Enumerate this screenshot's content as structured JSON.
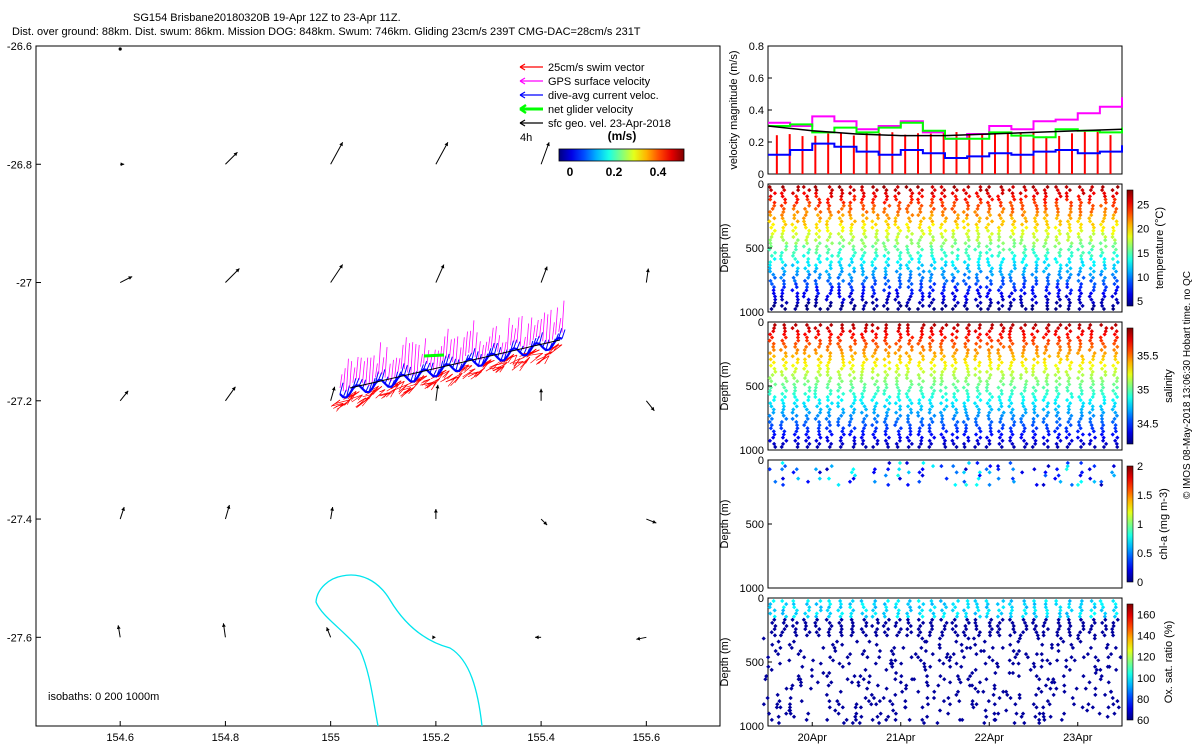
{
  "header": {
    "title": "SG154 Brisbane20180320B 19-Apr 12Z to 23-Apr 11Z.",
    "subtitle": "Dist. over ground: 88km. Dist. swum: 86km. Mission DOG: 848km. Swum: 746km. Gliding 23cm/s 239T CMG-DAC=28cm/s 231T"
  },
  "credit": "© IMOS 08-May-2018 13:06:30 Hobart time. no QC",
  "map": {
    "legend": [
      {
        "label": "25cm/s swim vector",
        "color": "#ff0000"
      },
      {
        "label": "GPS surface velocity",
        "color": "#ff00ff"
      },
      {
        "label": "dive-avg current veloc.",
        "color": "#0000ff"
      },
      {
        "label": "net glider velocity",
        "color": "#00ff00"
      },
      {
        "label": "sfc geo. vel. 23-Apr-2018",
        "color": "#000000"
      }
    ],
    "tag_4h": "4h",
    "colorbar_title": "(m/s)",
    "colorbar_ticks": [
      "0",
      "0.2",
      "0.4"
    ],
    "isobath_note": "isobaths: 0   200   1000m",
    "x_ticks": [
      "154.6",
      "154.8",
      "155",
      "155.2",
      "155.4",
      "155.6"
    ],
    "y_ticks": [
      "-26.6",
      "-26.8",
      "-27",
      "-27.2",
      "-27.4",
      "-27.6"
    ],
    "colors": {
      "isobath": "#00e5ee",
      "swim": "#ff0000",
      "gps": "#ff00ff",
      "dac": "#0000ff",
      "net": "#00ff00"
    }
  },
  "chart_data": [
    {
      "type": "line",
      "title": "",
      "xlabel": "",
      "ylabel": "velocity magnitude (m/s)",
      "ylim": [
        0,
        0.8
      ],
      "yticks": [
        "0",
        "0.2",
        "0.4",
        "0.6",
        "0.8"
      ],
      "series": [
        {
          "color": "#ff00ff",
          "x": [
            0,
            0.25,
            0.5,
            0.75,
            1,
            1.25,
            1.5,
            1.75,
            2,
            2.25,
            2.5,
            2.75,
            3,
            3.25,
            3.5,
            3.75,
            4
          ],
          "values": [
            0.32,
            0.3,
            0.36,
            0.33,
            0.28,
            0.3,
            0.33,
            0.26,
            0.22,
            0.25,
            0.3,
            0.28,
            0.33,
            0.34,
            0.38,
            0.42,
            0.48
          ]
        },
        {
          "color": "#00ff00",
          "x": [
            0,
            0.25,
            0.5,
            0.75,
            1,
            1.25,
            1.5,
            1.75,
            2,
            2.25,
            2.5,
            2.75,
            3,
            3.25,
            3.5,
            3.75,
            4
          ],
          "values": [
            0.3,
            0.31,
            0.26,
            0.29,
            0.26,
            0.29,
            0.32,
            0.27,
            0.22,
            0.22,
            0.26,
            0.24,
            0.23,
            0.28,
            0.27,
            0.26,
            0.29
          ]
        },
        {
          "color": "#0000ff",
          "x": [
            0,
            0.25,
            0.5,
            0.75,
            1,
            1.25,
            1.5,
            1.75,
            2,
            2.25,
            2.5,
            2.75,
            3,
            3.25,
            3.5,
            3.75,
            4
          ],
          "values": [
            0.12,
            0.15,
            0.19,
            0.17,
            0.14,
            0.12,
            0.15,
            0.13,
            0.1,
            0.11,
            0.13,
            0.12,
            0.14,
            0.15,
            0.13,
            0.14,
            0.18
          ]
        },
        {
          "color": "#000000",
          "x": [
            0,
            0.5,
            1,
            1.5,
            2,
            2.5,
            3,
            3.5,
            4
          ],
          "values": [
            0.3,
            0.27,
            0.25,
            0.24,
            0.24,
            0.25,
            0.26,
            0.27,
            0.28
          ]
        }
      ]
    },
    {
      "type": "scatter",
      "xlabel": "",
      "ylabel": "Depth (m)",
      "ylim": [
        0,
        1000
      ],
      "yticks": [
        "0",
        "500",
        "1000"
      ],
      "colorbar": {
        "label": "temperature (°C)",
        "ticks": [
          "5",
          "10",
          "15",
          "20",
          "25"
        ],
        "range": [
          4,
          28
        ]
      }
    },
    {
      "type": "scatter",
      "xlabel": "",
      "ylabel": "Depth (m)",
      "ylim": [
        0,
        1000
      ],
      "yticks": [
        "0",
        "500",
        "1000"
      ],
      "colorbar": {
        "label": "salinity",
        "ticks": [
          "34.5",
          "35",
          "35.5"
        ],
        "range": [
          34.2,
          35.9
        ]
      }
    },
    {
      "type": "scatter",
      "xlabel": "",
      "ylabel": "Depth (m)",
      "ylim": [
        0,
        1000
      ],
      "yticks": [
        "0",
        "500",
        "1000"
      ],
      "colorbar": {
        "label": "chl-a (mg m-3)",
        "ticks": [
          "0",
          "0.5",
          "1",
          "1.5",
          "2"
        ],
        "range": [
          0,
          2
        ]
      }
    },
    {
      "type": "scatter",
      "xlabel": "",
      "ylabel": "Depth (m)",
      "ylim": [
        0,
        1000
      ],
      "yticks": [
        "0",
        "500",
        "1000"
      ],
      "xticks": [
        "20Apr",
        "21Apr",
        "22Apr",
        "23Apr"
      ],
      "colorbar": {
        "label": "Ox. sat. ratio (%)",
        "ticks": [
          "60",
          "80",
          "100",
          "120",
          "140",
          "160"
        ],
        "range": [
          60,
          170
        ]
      }
    }
  ]
}
